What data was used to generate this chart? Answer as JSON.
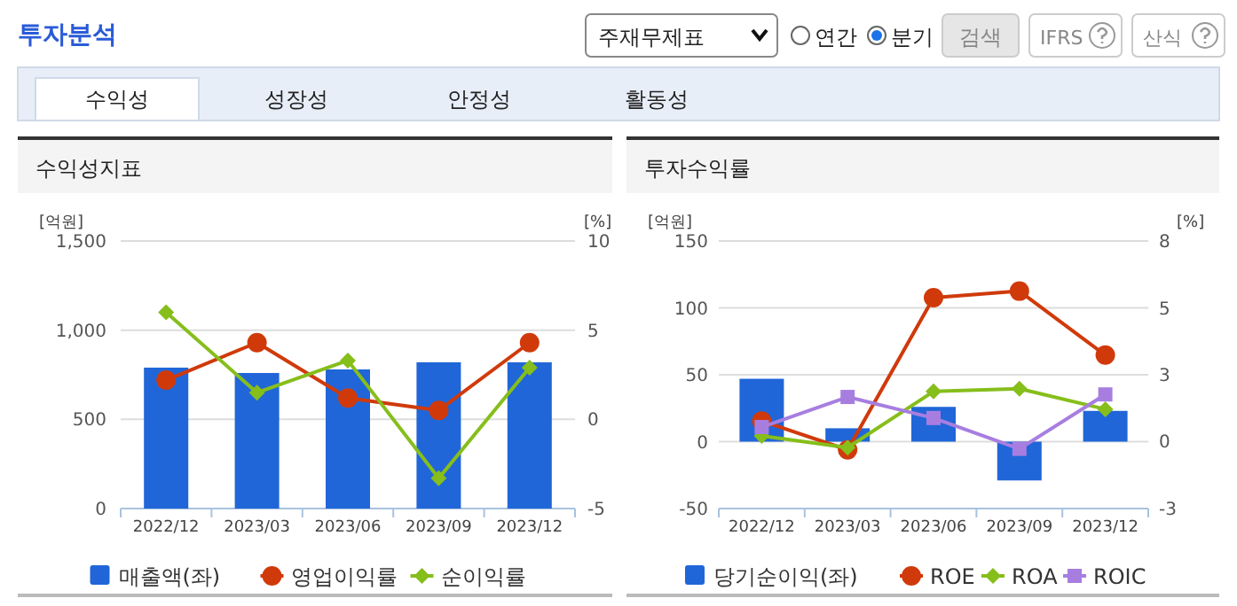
{
  "chart_data": [
    {
      "type": "other",
      "title": "투자분석",
      "annotations": [
        "주재무제표",
        "연간",
        "분기",
        "검색",
        "IFRS",
        "산식",
        "수익성",
        "성장성",
        "안정성",
        "활동성"
      ]
    },
    {
      "type": "bar",
      "title": "수익성지표",
      "ylabel": "[억원]",
      "y2label": "[%]",
      "categories": [
        "2022/12",
        "2023/03",
        "2023/06",
        "2023/09",
        "2023/12"
      ],
      "ylim": [
        0,
        1500
      ],
      "yticks": [
        0,
        500,
        {
          "value": 1000,
          "label": "1,000"
        },
        {
          "value": 1500,
          "label": "1,500"
        }
      ],
      "y2lim": [
        -5,
        10
      ],
      "y2ticks": [
        -5,
        0,
        5,
        10
      ],
      "grid": "y",
      "legend": "bottom",
      "series": [
        {
          "name": "매출액(좌)",
          "type": "bar",
          "color": "#2066d8",
          "values": [
            790,
            760,
            780,
            820,
            820
          ]
        },
        {
          "name": "영업이익률",
          "type": "line",
          "axis": "y2",
          "marker": "circle",
          "color": "#d03a0b",
          "values": [
            2.2,
            4.3,
            1.2,
            0.5,
            4.3
          ]
        },
        {
          "name": "순이익률",
          "type": "line",
          "axis": "y2",
          "marker": "diamond",
          "color": "#86be1b",
          "values": [
            6.0,
            1.5,
            3.3,
            -3.3,
            2.9
          ]
        }
      ]
    },
    {
      "type": "bar",
      "title": "투자수익률",
      "ylabel": "[억원]",
      "y2label": "[%]",
      "categories": [
        "2022/12",
        "2023/03",
        "2023/06",
        "2023/09",
        "2023/12"
      ],
      "ylim": [
        -50,
        150
      ],
      "yticks": [
        -50,
        0,
        50,
        100,
        150
      ],
      "y2lim": [
        -2.67,
        8
      ],
      "y2ticks": [
        {
          "value": -2.67,
          "label": "-3"
        },
        0,
        {
          "value": 2.67,
          "label": "3"
        },
        {
          "value": 5.33,
          "label": "5"
        },
        8
      ],
      "grid": "y",
      "legend": "bottom",
      "series": [
        {
          "name": "당기순이익(좌)",
          "type": "bar",
          "color": "#2066d8",
          "values": [
            47,
            10,
            26,
            -29,
            23
          ]
        },
        {
          "name": "ROE",
          "type": "line",
          "axis": "y2",
          "marker": "circle",
          "color": "#d03a0b",
          "values": [
            0.82,
            -0.33,
            5.74,
            6.0,
            3.45
          ]
        },
        {
          "name": "ROA",
          "type": "line",
          "axis": "y2",
          "marker": "diamond",
          "color": "#86be1b",
          "values": [
            0.23,
            -0.24,
            2.0,
            2.11,
            1.29
          ]
        },
        {
          "name": "ROIC",
          "type": "line",
          "axis": "y2",
          "marker": "square",
          "color": "#a77ee0",
          "values": [
            0.58,
            1.78,
            0.94,
            -0.29,
            1.88
          ]
        }
      ]
    }
  ]
}
